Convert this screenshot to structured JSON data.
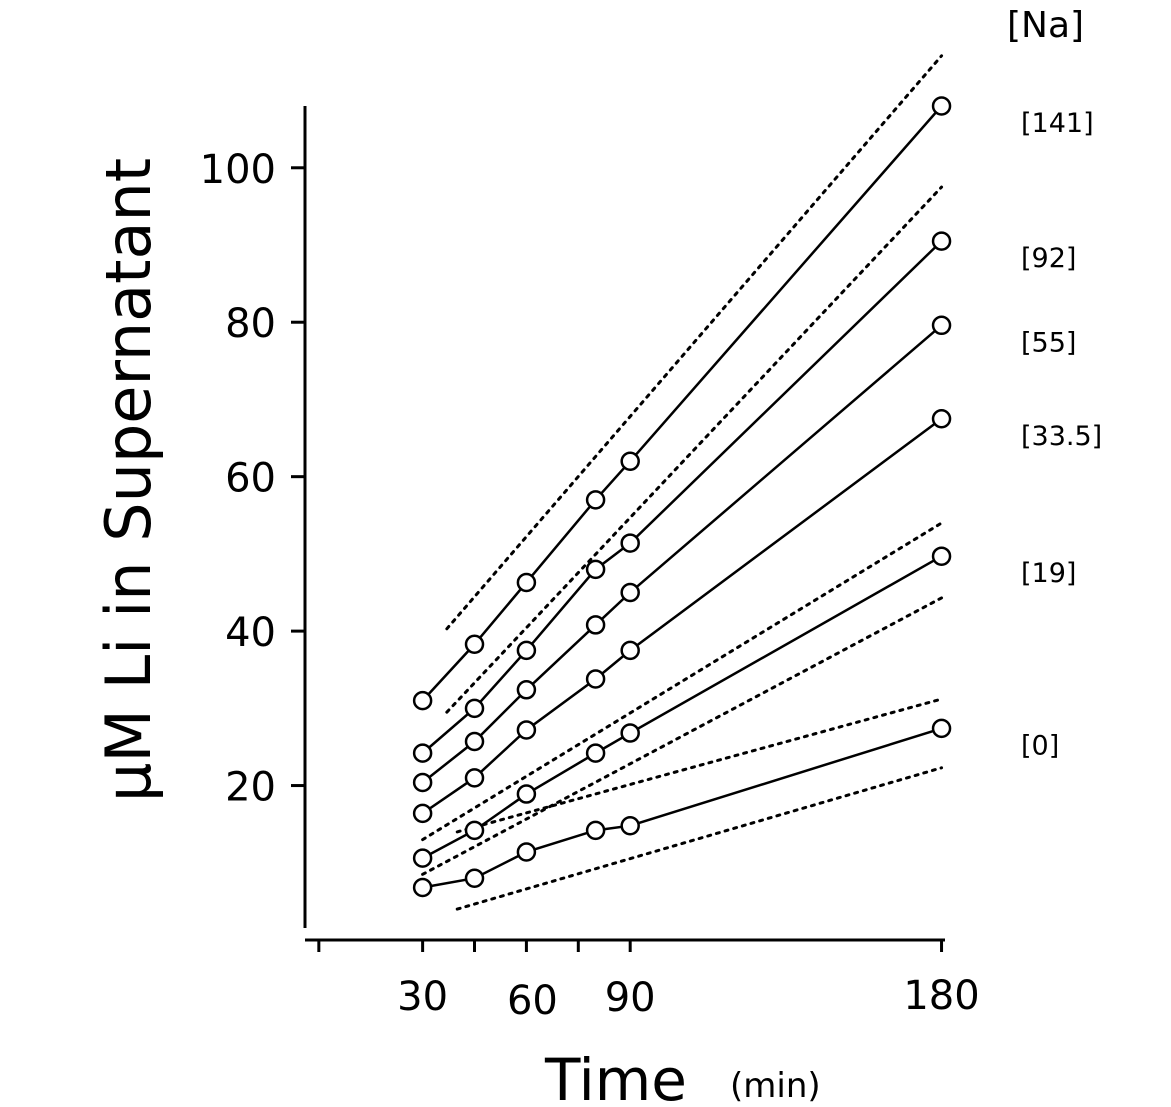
{
  "chart_data": {
    "type": "line",
    "ylabel": "μM Li in Supernatant",
    "xlabel": "Time",
    "xlabel_unit": "(min)",
    "legend_title": "[Na]",
    "x_ticks": [
      30,
      60,
      90,
      180
    ],
    "x_minor_ticks": [
      0,
      45,
      75
    ],
    "y_ticks": [
      20,
      40,
      60,
      80,
      100
    ],
    "xlim": [
      -4,
      181
    ],
    "ylim": [
      0,
      108
    ],
    "grid": false,
    "series": [
      {
        "name": "[141]",
        "x": [
          30,
          45,
          60,
          80,
          90,
          180
        ],
        "y": [
          31,
          38.3,
          46.3,
          57,
          62,
          108
        ]
      },
      {
        "name": "[92]",
        "x": [
          30,
          45,
          60,
          80,
          90,
          180
        ],
        "y": [
          24.2,
          30,
          37.5,
          48,
          51.4,
          90.5
        ]
      },
      {
        "name": "[55]",
        "x": [
          30,
          45,
          60,
          80,
          90,
          180
        ],
        "y": [
          20.4,
          25.7,
          32.4,
          40.8,
          45,
          79.6
        ]
      },
      {
        "name": "[33.5]",
        "x": [
          30,
          45,
          60,
          80,
          90,
          180
        ],
        "y": [
          16.4,
          21,
          27.2,
          33.8,
          37.5,
          67.5
        ]
      },
      {
        "name": "[19]",
        "x": [
          30,
          45,
          60,
          80,
          90,
          180
        ],
        "y": [
          10.6,
          14.2,
          18.9,
          24.2,
          26.8,
          49.7
        ]
      },
      {
        "name": "[0]",
        "x": [
          30,
          45,
          60,
          80,
          90,
          180
        ],
        "y": [
          6.8,
          8,
          11.4,
          14.2,
          14.8,
          27.4
        ]
      }
    ],
    "confidence_bands": [
      {
        "for": "[141]",
        "x": [
          37,
          180
        ],
        "y_upper": [
          40.3,
          114.5
        ],
        "y_lower": [
          29.5,
          97.5
        ]
      },
      {
        "for": "[19]",
        "x": [
          30,
          180
        ],
        "y_upper": [
          13,
          54
        ],
        "y_lower": [
          8.5,
          44.3
        ]
      },
      {
        "for": "[0]",
        "x": [
          40,
          180
        ],
        "y_upper": [
          14,
          31.2
        ],
        "y_lower": [
          4,
          22.3
        ]
      }
    ]
  }
}
